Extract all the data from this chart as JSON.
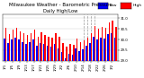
{
  "title": "Milwaukee Weather - Barometric Pressure",
  "subtitle": "Daily High/Low",
  "background_color": "#ffffff",
  "high_color": "#ff0000",
  "low_color": "#0000ff",
  "grid_color": "#cccccc",
  "legend_high": "High",
  "legend_low": "Low",
  "ylim": [
    29.0,
    31.2
  ],
  "yticks": [
    29.0,
    29.5,
    30.0,
    30.5,
    31.0
  ],
  "ytick_labels": [
    "29.0",
    "29.5",
    "30.0",
    "30.5",
    "31.0"
  ],
  "categories": [
    "1/1",
    "1/3",
    "1/5",
    "1/7",
    "1/9",
    "1/11",
    "1/13",
    "1/15",
    "1/17",
    "1/19",
    "1/21",
    "1/23",
    "1/25",
    "1/27",
    "1/29",
    "1/31",
    "2/2",
    "2/4",
    "2/6",
    "2/8",
    "2/10",
    "2/12",
    "2/14",
    "2/16",
    "2/18",
    "2/20",
    "2/22",
    "2/24",
    "2/26",
    "2/28",
    "3/2",
    "3/4"
  ],
  "highs": [
    30.55,
    30.25,
    30.45,
    30.55,
    30.4,
    30.3,
    30.2,
    30.3,
    30.45,
    30.15,
    30.35,
    30.2,
    30.15,
    30.1,
    30.3,
    30.15,
    29.85,
    29.65,
    29.8,
    29.75,
    30.05,
    29.9,
    29.95,
    30.1,
    30.3,
    30.65,
    30.5,
    30.6,
    30.55,
    30.8,
    30.9,
    30.6
  ],
  "lows": [
    30.05,
    29.85,
    30.0,
    30.1,
    30.0,
    29.9,
    29.8,
    29.9,
    30.0,
    29.7,
    29.85,
    29.8,
    29.7,
    29.65,
    29.8,
    29.6,
    29.4,
    29.1,
    29.35,
    29.3,
    29.6,
    29.45,
    29.55,
    29.7,
    29.85,
    30.15,
    30.0,
    30.1,
    30.05,
    30.25,
    30.3,
    30.1
  ],
  "dashed_indices": [
    22,
    23,
    24,
    25
  ],
  "title_fontsize": 4.0,
  "tick_fontsize": 2.8,
  "legend_fontsize": 3.2
}
